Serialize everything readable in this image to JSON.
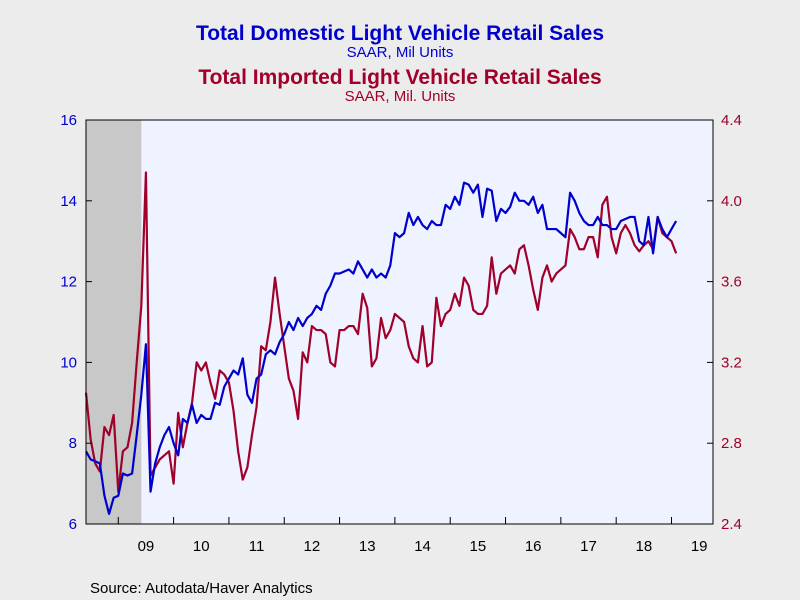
{
  "chart_data": {
    "type": "line",
    "titles": [
      {
        "text": "Total Domestic Light Vehicle Retail Sales",
        "color": "#0000cc"
      },
      {
        "text": "SAAR, Mil Units",
        "color": "#0000cc"
      },
      {
        "text": "Total Imported Light Vehicle Retail Sales",
        "color": "#a0002a"
      },
      {
        "text": "SAAR, Mil. Units",
        "color": "#a0002a"
      }
    ],
    "source": "Source:  Autodata/Haver Analytics",
    "x_ticks": [
      "09",
      "10",
      "11",
      "12",
      "13",
      "14",
      "15",
      "16",
      "17",
      "18",
      "19"
    ],
    "x_range": [
      "2008-06",
      "2019-10"
    ],
    "y_left": {
      "ticks": [
        "6",
        "8",
        "10",
        "12",
        "14",
        "16"
      ],
      "ylim": [
        6,
        16
      ],
      "color": "#0000cc"
    },
    "y_right": {
      "ticks": [
        "2.4",
        "2.8",
        "3.2",
        "3.6",
        "4.0",
        "4.4"
      ],
      "ylim": [
        2.4,
        4.4
      ],
      "color": "#a0002a"
    },
    "recession_shading": [
      "2008-06",
      "2009-06"
    ],
    "plot_background": "#eef3ff",
    "recession_color": "#c8c8c8",
    "series": [
      {
        "axis": "left",
        "color": "#0000cc",
        "points": [
          [
            "2008-06",
            7.8
          ],
          [
            "2008-07",
            7.6
          ],
          [
            "2008-08",
            7.55
          ],
          [
            "2008-09",
            7.5
          ],
          [
            "2008-10",
            6.7
          ],
          [
            "2008-11",
            6.25
          ],
          [
            "2008-12",
            6.65
          ],
          [
            "2009-01",
            6.7
          ],
          [
            "2009-02",
            7.25
          ],
          [
            "2009-03",
            7.2
          ],
          [
            "2009-04",
            7.25
          ],
          [
            "2009-05",
            8.2
          ],
          [
            "2009-06",
            9.2
          ],
          [
            "2009-07",
            10.45
          ],
          [
            "2009-08",
            6.8
          ],
          [
            "2009-09",
            7.5
          ],
          [
            "2009-10",
            7.9
          ],
          [
            "2009-11",
            8.2
          ],
          [
            "2009-12",
            8.4
          ],
          [
            "2010-01",
            8.0
          ],
          [
            "2010-02",
            7.7
          ],
          [
            "2010-03",
            8.6
          ],
          [
            "2010-04",
            8.5
          ],
          [
            "2010-05",
            8.95
          ],
          [
            "2010-06",
            8.5
          ],
          [
            "2010-07",
            8.7
          ],
          [
            "2010-08",
            8.6
          ],
          [
            "2010-09",
            8.6
          ],
          [
            "2010-10",
            9.0
          ],
          [
            "2010-11",
            8.95
          ],
          [
            "2010-12",
            9.4
          ],
          [
            "2011-01",
            9.6
          ],
          [
            "2011-02",
            9.8
          ],
          [
            "2011-03",
            9.7
          ],
          [
            "2011-04",
            10.1
          ],
          [
            "2011-05",
            9.2
          ],
          [
            "2011-06",
            9.0
          ],
          [
            "2011-07",
            9.6
          ],
          [
            "2011-08",
            9.7
          ],
          [
            "2011-09",
            10.2
          ],
          [
            "2011-10",
            10.3
          ],
          [
            "2011-11",
            10.2
          ],
          [
            "2011-12",
            10.5
          ],
          [
            "2012-01",
            10.7
          ],
          [
            "2012-02",
            11.0
          ],
          [
            "2012-03",
            10.8
          ],
          [
            "2012-04",
            11.1
          ],
          [
            "2012-05",
            10.9
          ],
          [
            "2012-06",
            11.1
          ],
          [
            "2012-07",
            11.2
          ],
          [
            "2012-08",
            11.4
          ],
          [
            "2012-09",
            11.3
          ],
          [
            "2012-10",
            11.7
          ],
          [
            "2012-11",
            11.9
          ],
          [
            "2012-12",
            12.2
          ],
          [
            "2013-01",
            12.2
          ],
          [
            "2013-02",
            12.25
          ],
          [
            "2013-03",
            12.3
          ],
          [
            "2013-04",
            12.2
          ],
          [
            "2013-05",
            12.5
          ],
          [
            "2013-06",
            12.3
          ],
          [
            "2013-07",
            12.1
          ],
          [
            "2013-08",
            12.3
          ],
          [
            "2013-09",
            12.1
          ],
          [
            "2013-10",
            12.2
          ],
          [
            "2013-11",
            12.1
          ],
          [
            "2013-12",
            12.4
          ],
          [
            "2014-01",
            13.2
          ],
          [
            "2014-02",
            13.1
          ],
          [
            "2014-03",
            13.2
          ],
          [
            "2014-04",
            13.7
          ],
          [
            "2014-05",
            13.4
          ],
          [
            "2014-06",
            13.6
          ],
          [
            "2014-07",
            13.4
          ],
          [
            "2014-08",
            13.3
          ],
          [
            "2014-09",
            13.5
          ],
          [
            "2014-10",
            13.4
          ],
          [
            "2014-11",
            13.4
          ],
          [
            "2014-12",
            13.9
          ],
          [
            "2015-01",
            13.8
          ],
          [
            "2015-02",
            14.1
          ],
          [
            "2015-03",
            13.9
          ],
          [
            "2015-04",
            14.45
          ],
          [
            "2015-05",
            14.4
          ],
          [
            "2015-06",
            14.2
          ],
          [
            "2015-07",
            14.4
          ],
          [
            "2015-08",
            13.6
          ],
          [
            "2015-09",
            14.3
          ],
          [
            "2015-10",
            14.25
          ],
          [
            "2015-11",
            13.5
          ],
          [
            "2015-12",
            13.8
          ],
          [
            "2016-01",
            13.7
          ],
          [
            "2016-02",
            13.85
          ],
          [
            "2016-03",
            14.2
          ],
          [
            "2016-04",
            14.0
          ],
          [
            "2016-05",
            14.0
          ],
          [
            "2016-06",
            13.9
          ],
          [
            "2016-07",
            14.1
          ],
          [
            "2016-08",
            13.7
          ],
          [
            "2016-09",
            13.9
          ],
          [
            "2016-10",
            13.3
          ],
          [
            "2016-11",
            13.3
          ],
          [
            "2016-12",
            13.3
          ],
          [
            "2017-01",
            13.2
          ],
          [
            "2017-02",
            13.1
          ],
          [
            "2017-03",
            14.2
          ],
          [
            "2017-04",
            14.0
          ],
          [
            "2017-05",
            13.7
          ],
          [
            "2017-06",
            13.5
          ],
          [
            "2017-07",
            13.4
          ],
          [
            "2017-08",
            13.4
          ],
          [
            "2017-09",
            13.6
          ],
          [
            "2017-10",
            13.4
          ],
          [
            "2017-11",
            13.4
          ],
          [
            "2017-12",
            13.3
          ],
          [
            "2018-01",
            13.3
          ],
          [
            "2018-02",
            13.5
          ],
          [
            "2018-03",
            13.55
          ],
          [
            "2018-04",
            13.6
          ],
          [
            "2018-05",
            13.6
          ],
          [
            "2018-06",
            13.0
          ],
          [
            "2018-07",
            12.9
          ],
          [
            "2018-08",
            13.6
          ],
          [
            "2018-09",
            12.7
          ],
          [
            "2018-10",
            13.6
          ],
          [
            "2018-11",
            13.3
          ],
          [
            "2018-12",
            13.1
          ],
          [
            "2019-01",
            13.3
          ],
          [
            "2019-02",
            13.5
          ]
        ]
      },
      {
        "axis": "right",
        "color": "#a0002a",
        "points": [
          [
            "2008-06",
            3.05
          ],
          [
            "2008-07",
            2.82
          ],
          [
            "2008-08",
            2.7
          ],
          [
            "2008-09",
            2.66
          ],
          [
            "2008-10",
            2.88
          ],
          [
            "2008-11",
            2.84
          ],
          [
            "2008-12",
            2.94
          ],
          [
            "2009-01",
            2.56
          ],
          [
            "2009-02",
            2.76
          ],
          [
            "2009-03",
            2.78
          ],
          [
            "2009-04",
            2.9
          ],
          [
            "2009-05",
            3.2
          ],
          [
            "2009-06",
            3.48
          ],
          [
            "2009-07",
            4.14
          ],
          [
            "2009-08",
            2.64
          ],
          [
            "2009-09",
            2.68
          ],
          [
            "2009-10",
            2.72
          ],
          [
            "2009-11",
            2.74
          ],
          [
            "2009-12",
            2.76
          ],
          [
            "2010-01",
            2.6
          ],
          [
            "2010-02",
            2.95
          ],
          [
            "2010-03",
            2.78
          ],
          [
            "2010-04",
            2.9
          ],
          [
            "2010-05",
            3.0
          ],
          [
            "2010-06",
            3.2
          ],
          [
            "2010-07",
            3.16
          ],
          [
            "2010-08",
            3.2
          ],
          [
            "2010-09",
            3.1
          ],
          [
            "2010-10",
            3.02
          ],
          [
            "2010-11",
            3.16
          ],
          [
            "2010-12",
            3.14
          ],
          [
            "2011-01",
            3.1
          ],
          [
            "2011-02",
            2.96
          ],
          [
            "2011-03",
            2.76
          ],
          [
            "2011-04",
            2.62
          ],
          [
            "2011-05",
            2.68
          ],
          [
            "2011-06",
            2.84
          ],
          [
            "2011-07",
            2.98
          ],
          [
            "2011-08",
            3.28
          ],
          [
            "2011-09",
            3.26
          ],
          [
            "2011-10",
            3.4
          ],
          [
            "2011-11",
            3.62
          ],
          [
            "2011-12",
            3.44
          ],
          [
            "2012-01",
            3.28
          ],
          [
            "2012-02",
            3.12
          ],
          [
            "2012-03",
            3.06
          ],
          [
            "2012-04",
            2.92
          ],
          [
            "2012-05",
            3.25
          ],
          [
            "2012-06",
            3.2
          ],
          [
            "2012-07",
            3.38
          ],
          [
            "2012-08",
            3.36
          ],
          [
            "2012-09",
            3.36
          ],
          [
            "2012-10",
            3.34
          ],
          [
            "2012-11",
            3.2
          ],
          [
            "2012-12",
            3.18
          ],
          [
            "2013-01",
            3.36
          ],
          [
            "2013-02",
            3.36
          ],
          [
            "2013-03",
            3.38
          ],
          [
            "2013-04",
            3.38
          ],
          [
            "2013-05",
            3.34
          ],
          [
            "2013-06",
            3.54
          ],
          [
            "2013-07",
            3.47
          ],
          [
            "2013-08",
            3.18
          ],
          [
            "2013-09",
            3.22
          ],
          [
            "2013-10",
            3.42
          ],
          [
            "2013-11",
            3.32
          ],
          [
            "2013-12",
            3.36
          ],
          [
            "2014-01",
            3.44
          ],
          [
            "2014-02",
            3.42
          ],
          [
            "2014-03",
            3.4
          ],
          [
            "2014-04",
            3.28
          ],
          [
            "2014-05",
            3.22
          ],
          [
            "2014-06",
            3.2
          ],
          [
            "2014-07",
            3.38
          ],
          [
            "2014-08",
            3.18
          ],
          [
            "2014-09",
            3.2
          ],
          [
            "2014-10",
            3.52
          ],
          [
            "2014-11",
            3.38
          ],
          [
            "2014-12",
            3.44
          ],
          [
            "2015-01",
            3.46
          ],
          [
            "2015-02",
            3.54
          ],
          [
            "2015-03",
            3.48
          ],
          [
            "2015-04",
            3.62
          ],
          [
            "2015-05",
            3.58
          ],
          [
            "2015-06",
            3.46
          ],
          [
            "2015-07",
            3.44
          ],
          [
            "2015-08",
            3.44
          ],
          [
            "2015-09",
            3.48
          ],
          [
            "2015-10",
            3.72
          ],
          [
            "2015-11",
            3.54
          ],
          [
            "2015-12",
            3.64
          ],
          [
            "2016-01",
            3.66
          ],
          [
            "2016-02",
            3.68
          ],
          [
            "2016-03",
            3.64
          ],
          [
            "2016-04",
            3.76
          ],
          [
            "2016-05",
            3.78
          ],
          [
            "2016-06",
            3.68
          ],
          [
            "2016-07",
            3.56
          ],
          [
            "2016-08",
            3.46
          ],
          [
            "2016-09",
            3.62
          ],
          [
            "2016-10",
            3.68
          ],
          [
            "2016-11",
            3.6
          ],
          [
            "2016-12",
            3.64
          ],
          [
            "2017-01",
            3.66
          ],
          [
            "2017-02",
            3.68
          ],
          [
            "2017-03",
            3.86
          ],
          [
            "2017-04",
            3.82
          ],
          [
            "2017-05",
            3.76
          ],
          [
            "2017-06",
            3.76
          ],
          [
            "2017-07",
            3.82
          ],
          [
            "2017-08",
            3.82
          ],
          [
            "2017-09",
            3.72
          ],
          [
            "2017-10",
            3.98
          ],
          [
            "2017-11",
            4.02
          ],
          [
            "2017-12",
            3.82
          ],
          [
            "2018-01",
            3.74
          ],
          [
            "2018-02",
            3.84
          ],
          [
            "2018-03",
            3.88
          ],
          [
            "2018-04",
            3.84
          ],
          [
            "2018-05",
            3.78
          ],
          [
            "2018-06",
            3.75
          ],
          [
            "2018-07",
            3.78
          ],
          [
            "2018-08",
            3.8
          ],
          [
            "2018-09",
            3.76
          ],
          [
            "2018-10",
            3.92
          ],
          [
            "2018-11",
            3.84
          ],
          [
            "2018-12",
            3.82
          ],
          [
            "2019-01",
            3.8
          ],
          [
            "2019-02",
            3.74
          ]
        ]
      }
    ]
  }
}
